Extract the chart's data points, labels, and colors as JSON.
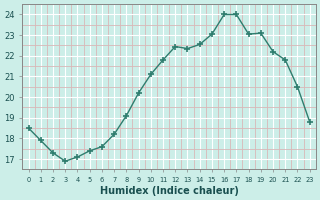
{
  "x": [
    0,
    1,
    2,
    3,
    4,
    5,
    6,
    7,
    8,
    9,
    10,
    11,
    12,
    13,
    14,
    15,
    16,
    17,
    18,
    19,
    20,
    21,
    22,
    23
  ],
  "y": [
    18.5,
    17.9,
    17.3,
    16.9,
    17.1,
    17.4,
    17.6,
    18.2,
    19.1,
    20.2,
    21.1,
    21.8,
    22.45,
    22.35,
    22.55,
    23.05,
    24.0,
    24.0,
    23.05,
    23.1,
    22.2,
    21.8,
    20.5,
    18.8
  ],
  "xlabel": "Humidex (Indice chaleur)",
  "line_color": "#2e7d6e",
  "marker": "+",
  "marker_size": 4,
  "marker_lw": 1.2,
  "bg_color": "#cceee8",
  "grid_major_color": "#ffffff",
  "grid_minor_color": "#d8b8b8",
  "ylim": [
    16.5,
    24.5
  ],
  "xlim": [
    -0.5,
    23.5
  ],
  "yticks": [
    17,
    18,
    19,
    20,
    21,
    22,
    23,
    24
  ],
  "xticks": [
    0,
    1,
    2,
    3,
    4,
    5,
    6,
    7,
    8,
    9,
    10,
    11,
    12,
    13,
    14,
    15,
    16,
    17,
    18,
    19,
    20,
    21,
    22,
    23
  ],
  "xlabel_color": "#1a5050",
  "tick_color": "#1a5050",
  "spine_color": "#888888",
  "linewidth": 1.0
}
